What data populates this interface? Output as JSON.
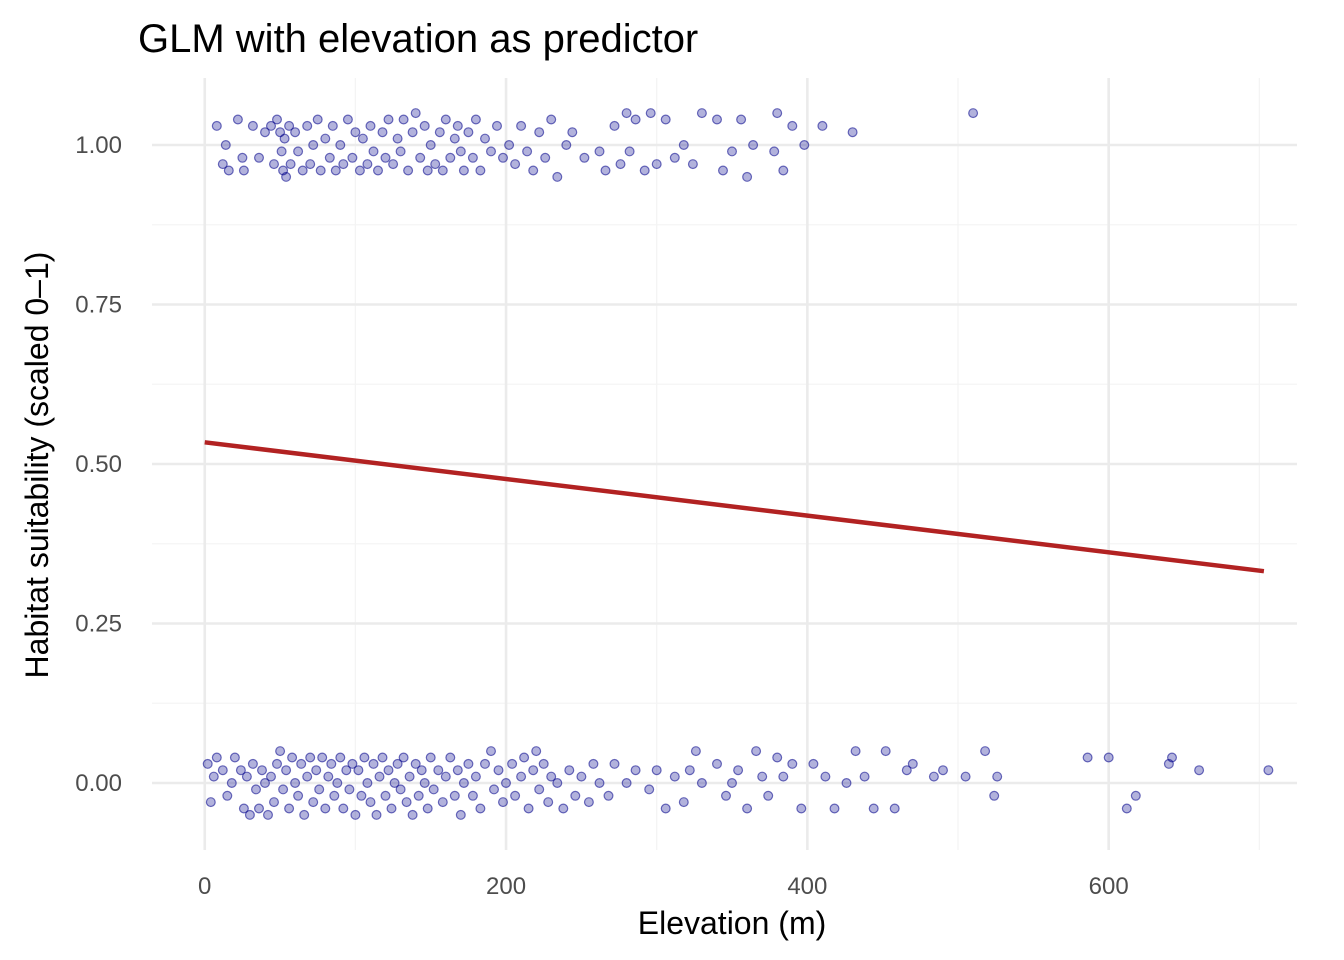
{
  "chart_data": {
    "type": "scatter",
    "title": "GLM with elevation as predictor",
    "xlabel": "Elevation (m)",
    "ylabel": "Habitat suitability (scaled 0–1)",
    "xlim": [
      -35,
      725
    ],
    "ylim": [
      -0.105,
      1.105
    ],
    "x_ticks": [
      0,
      200,
      400,
      600
    ],
    "x_tick_labels": [
      "0",
      "200",
      "400",
      "600"
    ],
    "x_minor_ticks": [
      100,
      300,
      500,
      700
    ],
    "y_ticks": [
      0,
      0.25,
      0.5,
      0.75,
      1
    ],
    "y_tick_labels": [
      "0.00",
      "0.25",
      "0.50",
      "0.75",
      "1.00"
    ],
    "y_minor_ticks": [
      0.125,
      0.375,
      0.625,
      0.875
    ],
    "grid": true,
    "legend": "none",
    "colors": {
      "points": "#00008b",
      "fit_line": "#b22222",
      "grid": "#ebebeb"
    },
    "fit_line": {
      "x": [
        0,
        703
      ],
      "y": [
        0.534,
        0.332
      ]
    },
    "points": {
      "presence": [
        [
          8,
          1.03
        ],
        [
          12,
          0.97
        ],
        [
          14,
          1.0
        ],
        [
          16,
          0.96
        ],
        [
          22,
          1.04
        ],
        [
          25,
          0.98
        ],
        [
          26,
          0.96
        ],
        [
          32,
          1.03
        ],
        [
          36,
          0.98
        ],
        [
          40,
          1.02
        ],
        [
          44,
          1.03
        ],
        [
          46,
          0.97
        ],
        [
          48,
          1.04
        ],
        [
          50,
          1.02
        ],
        [
          51,
          0.99
        ],
        [
          52,
          0.96
        ],
        [
          53,
          1.01
        ],
        [
          54,
          0.95
        ],
        [
          56,
          1.03
        ],
        [
          57,
          0.97
        ],
        [
          60,
          1.02
        ],
        [
          62,
          0.99
        ],
        [
          65,
          0.96
        ],
        [
          68,
          1.03
        ],
        [
          70,
          0.97
        ],
        [
          72,
          1.0
        ],
        [
          75,
          1.04
        ],
        [
          77,
          0.96
        ],
        [
          80,
          1.01
        ],
        [
          83,
          0.98
        ],
        [
          85,
          1.03
        ],
        [
          87,
          0.96
        ],
        [
          90,
          1.0
        ],
        [
          92,
          0.97
        ],
        [
          95,
          1.04
        ],
        [
          98,
          0.98
        ],
        [
          100,
          1.02
        ],
        [
          103,
          0.96
        ],
        [
          105,
          1.01
        ],
        [
          108,
          0.97
        ],
        [
          110,
          1.03
        ],
        [
          112,
          0.99
        ],
        [
          115,
          0.96
        ],
        [
          118,
          1.02
        ],
        [
          120,
          0.98
        ],
        [
          122,
          1.04
        ],
        [
          125,
          0.97
        ],
        [
          128,
          1.01
        ],
        [
          130,
          0.99
        ],
        [
          132,
          1.04
        ],
        [
          135,
          0.96
        ],
        [
          138,
          1.02
        ],
        [
          140,
          1.05
        ],
        [
          143,
          0.98
        ],
        [
          146,
          1.03
        ],
        [
          148,
          0.96
        ],
        [
          150,
          1.0
        ],
        [
          153,
          0.97
        ],
        [
          156,
          1.02
        ],
        [
          158,
          0.96
        ],
        [
          160,
          1.04
        ],
        [
          163,
          0.98
        ],
        [
          166,
          1.01
        ],
        [
          168,
          1.03
        ],
        [
          170,
          0.99
        ],
        [
          172,
          0.96
        ],
        [
          175,
          1.02
        ],
        [
          178,
          0.98
        ],
        [
          180,
          1.04
        ],
        [
          183,
          0.96
        ],
        [
          186,
          1.01
        ],
        [
          190,
          0.99
        ],
        [
          194,
          1.03
        ],
        [
          198,
          0.98
        ],
        [
          202,
          1.0
        ],
        [
          206,
          0.97
        ],
        [
          210,
          1.03
        ],
        [
          214,
          0.99
        ],
        [
          218,
          0.96
        ],
        [
          222,
          1.02
        ],
        [
          226,
          0.98
        ],
        [
          230,
          1.04
        ],
        [
          234,
          0.95
        ],
        [
          240,
          1.0
        ],
        [
          244,
          1.02
        ],
        [
          252,
          0.98
        ],
        [
          262,
          0.99
        ],
        [
          266,
          0.96
        ],
        [
          272,
          1.03
        ],
        [
          276,
          0.97
        ],
        [
          280,
          1.05
        ],
        [
          282,
          0.99
        ],
        [
          286,
          1.04
        ],
        [
          292,
          0.96
        ],
        [
          296,
          1.05
        ],
        [
          300,
          0.97
        ],
        [
          306,
          1.04
        ],
        [
          312,
          0.98
        ],
        [
          318,
          1.0
        ],
        [
          324,
          0.97
        ],
        [
          330,
          1.05
        ],
        [
          340,
          1.04
        ],
        [
          344,
          0.96
        ],
        [
          350,
          0.99
        ],
        [
          356,
          1.04
        ],
        [
          360,
          0.95
        ],
        [
          364,
          1.0
        ],
        [
          378,
          0.99
        ],
        [
          380,
          1.05
        ],
        [
          384,
          0.96
        ],
        [
          390,
          1.03
        ],
        [
          398,
          1.0
        ],
        [
          410,
          1.03
        ],
        [
          430,
          1.02
        ],
        [
          510,
          1.05
        ]
      ],
      "absence": [
        [
          2,
          0.03
        ],
        [
          4,
          -0.03
        ],
        [
          6,
          0.01
        ],
        [
          8,
          0.04
        ],
        [
          12,
          0.02
        ],
        [
          15,
          -0.02
        ],
        [
          18,
          0.0
        ],
        [
          20,
          0.04
        ],
        [
          24,
          0.02
        ],
        [
          26,
          -0.04
        ],
        [
          28,
          0.01
        ],
        [
          30,
          -0.05
        ],
        [
          32,
          0.03
        ],
        [
          34,
          -0.01
        ],
        [
          36,
          -0.04
        ],
        [
          38,
          0.02
        ],
        [
          40,
          0.0
        ],
        [
          42,
          -0.05
        ],
        [
          44,
          0.01
        ],
        [
          46,
          -0.03
        ],
        [
          48,
          0.03
        ],
        [
          50,
          0.05
        ],
        [
          52,
          -0.01
        ],
        [
          54,
          0.02
        ],
        [
          56,
          -0.04
        ],
        [
          58,
          0.04
        ],
        [
          60,
          0.0
        ],
        [
          62,
          -0.02
        ],
        [
          64,
          0.03
        ],
        [
          66,
          -0.05
        ],
        [
          68,
          0.01
        ],
        [
          70,
          0.04
        ],
        [
          72,
          -0.03
        ],
        [
          74,
          0.02
        ],
        [
          76,
          -0.01
        ],
        [
          78,
          0.04
        ],
        [
          80,
          -0.04
        ],
        [
          82,
          0.01
        ],
        [
          84,
          0.03
        ],
        [
          86,
          -0.02
        ],
        [
          88,
          0.0
        ],
        [
          90,
          0.04
        ],
        [
          92,
          -0.04
        ],
        [
          94,
          0.02
        ],
        [
          96,
          -0.01
        ],
        [
          98,
          0.03
        ],
        [
          100,
          -0.05
        ],
        [
          102,
          0.02
        ],
        [
          104,
          -0.02
        ],
        [
          106,
          0.04
        ],
        [
          108,
          0.0
        ],
        [
          110,
          -0.03
        ],
        [
          112,
          0.03
        ],
        [
          114,
          -0.05
        ],
        [
          116,
          0.01
        ],
        [
          118,
          0.04
        ],
        [
          120,
          -0.02
        ],
        [
          122,
          0.02
        ],
        [
          124,
          -0.04
        ],
        [
          126,
          0.0
        ],
        [
          128,
          0.03
        ],
        [
          130,
          -0.01
        ],
        [
          132,
          0.04
        ],
        [
          134,
          -0.03
        ],
        [
          136,
          0.01
        ],
        [
          138,
          -0.05
        ],
        [
          140,
          0.03
        ],
        [
          142,
          -0.02
        ],
        [
          144,
          0.02
        ],
        [
          146,
          0.0
        ],
        [
          148,
          -0.04
        ],
        [
          150,
          0.04
        ],
        [
          152,
          -0.01
        ],
        [
          155,
          0.02
        ],
        [
          158,
          -0.03
        ],
        [
          160,
          0.01
        ],
        [
          163,
          0.04
        ],
        [
          166,
          -0.02
        ],
        [
          168,
          0.02
        ],
        [
          170,
          -0.05
        ],
        [
          172,
          0.0
        ],
        [
          175,
          0.03
        ],
        [
          178,
          -0.02
        ],
        [
          180,
          0.01
        ],
        [
          183,
          -0.04
        ],
        [
          186,
          0.03
        ],
        [
          190,
          0.05
        ],
        [
          192,
          -0.01
        ],
        [
          195,
          0.02
        ],
        [
          198,
          -0.03
        ],
        [
          200,
          0.0
        ],
        [
          204,
          0.03
        ],
        [
          206,
          -0.02
        ],
        [
          210,
          0.01
        ],
        [
          212,
          0.04
        ],
        [
          215,
          -0.04
        ],
        [
          218,
          0.02
        ],
        [
          220,
          0.05
        ],
        [
          222,
          -0.01
        ],
        [
          225,
          0.03
        ],
        [
          228,
          -0.03
        ],
        [
          230,
          0.01
        ],
        [
          234,
          0.0
        ],
        [
          238,
          -0.04
        ],
        [
          242,
          0.02
        ],
        [
          246,
          -0.02
        ],
        [
          250,
          0.01
        ],
        [
          255,
          -0.03
        ],
        [
          258,
          0.03
        ],
        [
          262,
          0.0
        ],
        [
          268,
          -0.02
        ],
        [
          272,
          0.03
        ],
        [
          280,
          0.0
        ],
        [
          286,
          0.02
        ],
        [
          295,
          -0.01
        ],
        [
          300,
          0.02
        ],
        [
          306,
          -0.04
        ],
        [
          312,
          0.01
        ],
        [
          318,
          -0.03
        ],
        [
          322,
          0.02
        ],
        [
          326,
          0.05
        ],
        [
          330,
          0.0
        ],
        [
          340,
          0.03
        ],
        [
          346,
          -0.02
        ],
        [
          350,
          0.0
        ],
        [
          354,
          0.02
        ],
        [
          360,
          -0.04
        ],
        [
          366,
          0.05
        ],
        [
          370,
          0.01
        ],
        [
          374,
          -0.02
        ],
        [
          380,
          0.04
        ],
        [
          384,
          0.01
        ],
        [
          390,
          0.03
        ],
        [
          396,
          -0.04
        ],
        [
          404,
          0.03
        ],
        [
          412,
          0.01
        ],
        [
          418,
          -0.04
        ],
        [
          426,
          0.0
        ],
        [
          432,
          0.05
        ],
        [
          438,
          0.01
        ],
        [
          444,
          -0.04
        ],
        [
          452,
          0.05
        ],
        [
          458,
          -0.04
        ],
        [
          466,
          0.02
        ],
        [
          470,
          0.03
        ],
        [
          484,
          0.01
        ],
        [
          490,
          0.02
        ],
        [
          505,
          0.01
        ],
        [
          518,
          0.05
        ],
        [
          524,
          -0.02
        ],
        [
          526,
          0.01
        ],
        [
          586,
          0.04
        ],
        [
          600,
          0.04
        ],
        [
          612,
          -0.04
        ],
        [
          618,
          -0.02
        ],
        [
          640,
          0.03
        ],
        [
          642,
          0.04
        ],
        [
          660,
          0.02
        ],
        [
          706,
          0.02
        ]
      ]
    }
  }
}
